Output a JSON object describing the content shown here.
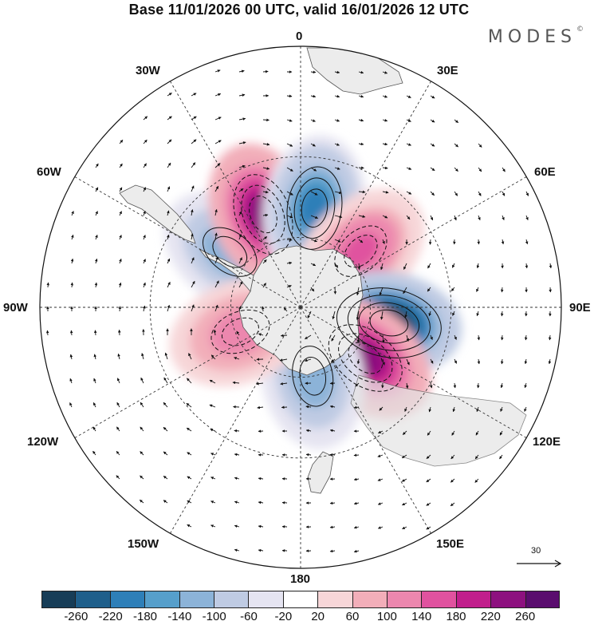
{
  "title": "Base 11/01/2026 00 UTC, valid 16/01/2026 12 UTC",
  "brand": "MODES",
  "brand_mark": "©",
  "longitude_labels": {
    "north": "0",
    "ne30": "30E",
    "ne60": "60E",
    "east": "90E",
    "se120": "120E",
    "se150": "150E",
    "south": "180",
    "sw150": "150W",
    "sw120": "120W",
    "west": "90W",
    "nw60": "60W",
    "nw30": "30W"
  },
  "reference_vector": {
    "label": "30"
  },
  "colorbar": {
    "colors": [
      "#173d57",
      "#1f5f8b",
      "#2e7fb8",
      "#569fcb",
      "#8cb3d8",
      "#bfcbe3",
      "#e5e4f1",
      "#ffffff",
      "#f7d6d8",
      "#f2aeb9",
      "#ec87ae",
      "#e0529f",
      "#c11f8c",
      "#8d117f",
      "#5a0d6e"
    ],
    "ticks": [
      "-260",
      "-220",
      "-180",
      "-140",
      "-100",
      "-60",
      "-20",
      "20",
      "60",
      "100",
      "140",
      "180",
      "220",
      "260"
    ]
  },
  "anomaly_centers": [
    {
      "name": "neg-south-atlantic-west",
      "lon": -52,
      "lat": -52,
      "value": -140
    },
    {
      "name": "pos-south-atlantic",
      "lon": -22,
      "lat": -48,
      "value": 240
    },
    {
      "name": "neg-south-atlantic-east",
      "lon": 8,
      "lat": -48,
      "value": -200
    },
    {
      "name": "pos-indian-west",
      "lon": 47,
      "lat": -55,
      "value": 160
    },
    {
      "name": "neg-indian-east",
      "lon": 100,
      "lat": -52,
      "value": -280
    },
    {
      "name": "pos-australia-south",
      "lon": 128,
      "lat": -55,
      "value": 240
    },
    {
      "name": "neg-tasman",
      "lon": 170,
      "lat": -60,
      "value": -140
    },
    {
      "name": "pos-southeast-pacific",
      "lon": -112,
      "lat": -62,
      "value": 120
    }
  ]
}
